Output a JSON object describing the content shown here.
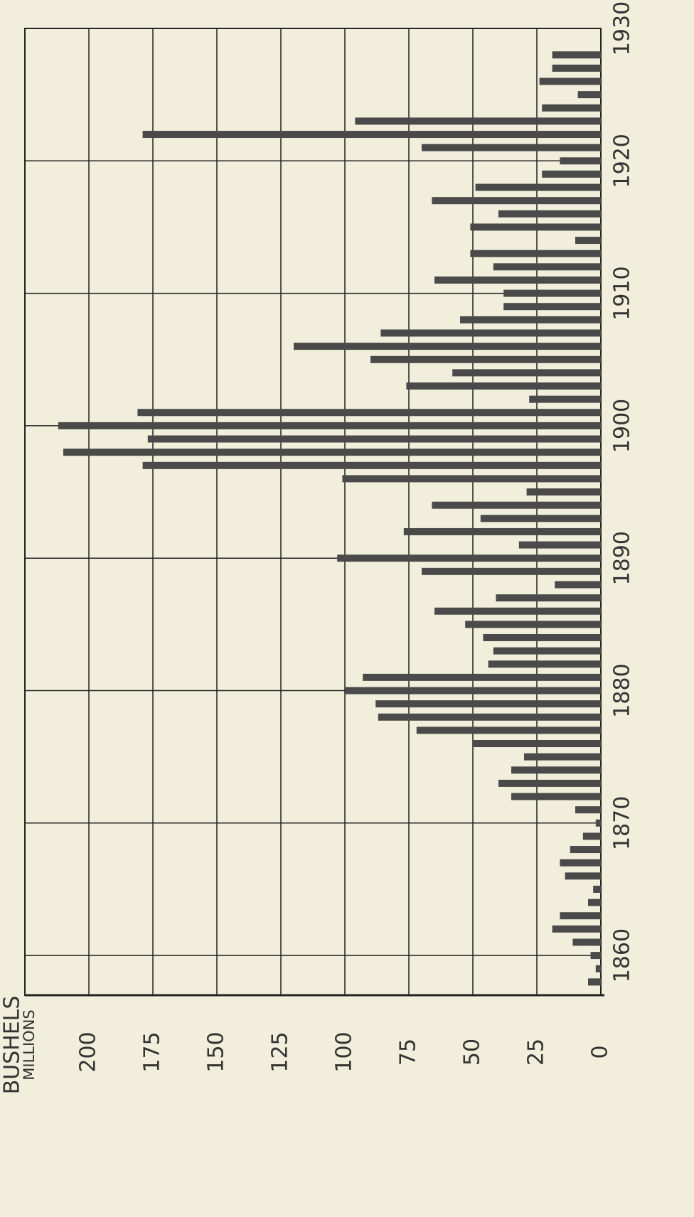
{
  "chart_data": {
    "type": "bar",
    "y_label_lines": [
      "BUSHELS",
      "MILLIONS"
    ],
    "x": [
      1858,
      1859,
      1860,
      1861,
      1862,
      1863,
      1864,
      1865,
      1866,
      1867,
      1868,
      1869,
      1870,
      1871,
      1872,
      1873,
      1874,
      1875,
      1876,
      1877,
      1878,
      1879,
      1880,
      1881,
      1882,
      1883,
      1884,
      1885,
      1886,
      1887,
      1888,
      1889,
      1890,
      1891,
      1892,
      1893,
      1894,
      1895,
      1896,
      1897,
      1898,
      1899,
      1900,
      1901,
      1902,
      1903,
      1904,
      1905,
      1906,
      1907,
      1908,
      1909,
      1910,
      1911,
      1912,
      1913,
      1914,
      1915,
      1916,
      1917,
      1918,
      1919,
      1920,
      1921,
      1922,
      1923,
      1924,
      1925,
      1926,
      1927,
      1928
    ],
    "values": [
      5,
      2,
      4,
      11,
      19,
      16,
      5,
      3,
      14,
      16,
      12,
      7,
      2,
      10,
      35,
      40,
      35,
      30,
      50,
      72,
      87,
      88,
      100,
      93,
      44,
      42,
      46,
      53,
      65,
      41,
      18,
      70,
      103,
      32,
      77,
      47,
      66,
      29,
      101,
      179,
      210,
      177,
      212,
      181,
      28,
      76,
      58,
      90,
      120,
      86,
      55,
      38,
      38,
      65,
      42,
      51,
      10,
      51,
      40,
      66,
      49,
      23,
      16,
      70,
      179,
      96,
      23,
      9,
      24,
      19,
      19
    ],
    "color": "#4a4a4a",
    "xlim": [
      1857,
      1930
    ],
    "xticks": [
      1860,
      1870,
      1880,
      1890,
      1900,
      1910,
      1920,
      1930
    ],
    "ylim": [
      0,
      225
    ],
    "yticks": [
      0,
      25,
      50,
      75,
      100,
      125,
      150,
      175,
      200
    ],
    "grid": true
  }
}
